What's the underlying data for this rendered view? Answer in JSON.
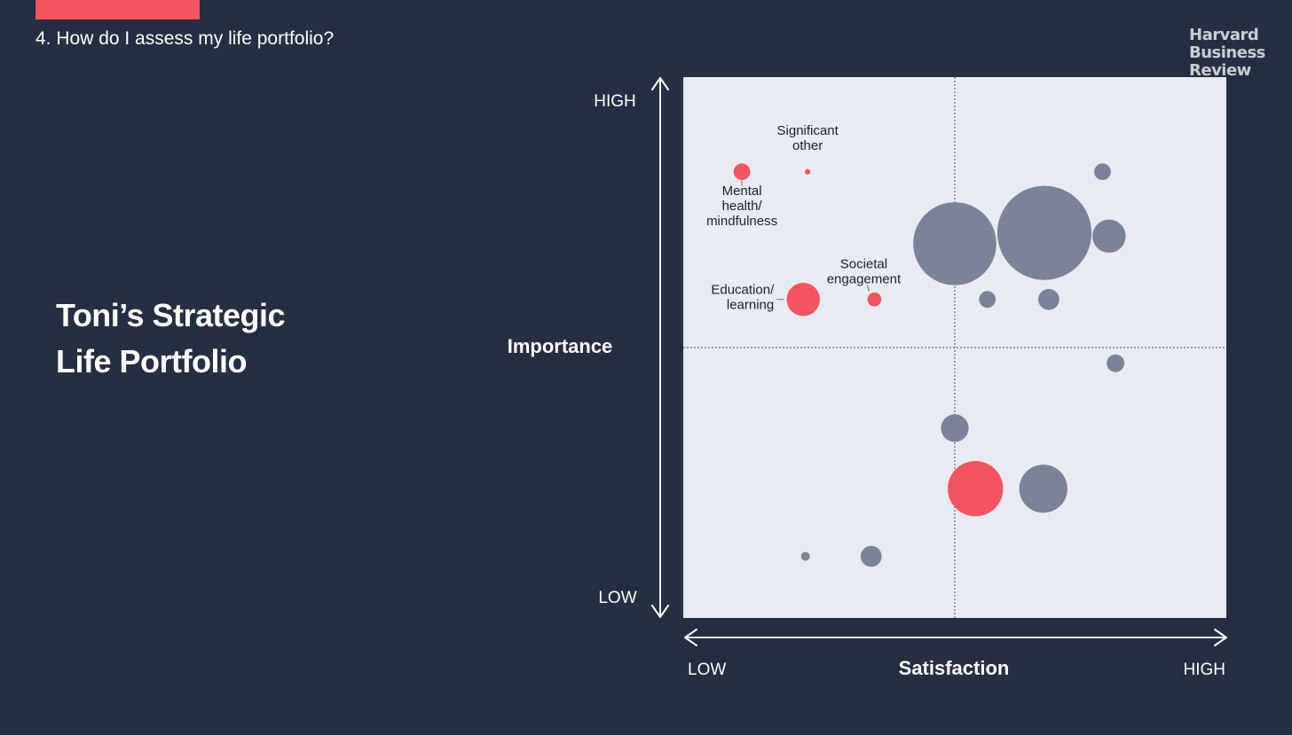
{
  "header": {
    "section_title": "4. How do I assess my life portfolio?",
    "accent_color": "#f4545e"
  },
  "brand": {
    "lines": [
      "Harvard",
      "Business",
      "Review"
    ]
  },
  "portfolio_title": {
    "lines": [
      "Toni’s Strategic",
      "Life Portfolio"
    ]
  },
  "chart_data": {
    "type": "scatter",
    "subtype": "bubble",
    "xlabel": "Satisfaction",
    "ylabel": "Importance",
    "x_ticks": {
      "low": "LOW",
      "high": "HIGH"
    },
    "y_ticks": {
      "low": "LOW",
      "high": "HIGH"
    },
    "xlim": [
      0,
      100
    ],
    "ylim": [
      0,
      100
    ],
    "quadrant_dividers": {
      "x": 50,
      "y": 50
    },
    "plot_background": "#e8ecf2",
    "colors": {
      "highlight": "#f4545e",
      "default": "#7b8299"
    },
    "points": [
      {
        "label": "Mental health/ mindfulness",
        "x": 10.8,
        "y": 82.5,
        "size": 3,
        "highlight": true
      },
      {
        "label": "Significant other",
        "x": 22.9,
        "y": 82.5,
        "size": 1,
        "highlight": true
      },
      {
        "label": "Education/ learning",
        "x": 22.1,
        "y": 58.9,
        "size": 6,
        "highlight": true
      },
      {
        "label": "Societal engagement",
        "x": 35.2,
        "y": 58.9,
        "size": 2.5,
        "highlight": true
      },
      {
        "label": "",
        "x": 53.8,
        "y": 23.9,
        "size": 10,
        "highlight": true
      },
      {
        "label": "",
        "x": 77.2,
        "y": 82.5,
        "size": 3,
        "highlight": false
      },
      {
        "label": "",
        "x": 50.0,
        "y": 69.2,
        "size": 15,
        "highlight": false
      },
      {
        "label": "",
        "x": 66.5,
        "y": 71.2,
        "size": 17,
        "highlight": false
      },
      {
        "label": "",
        "x": 78.4,
        "y": 70.6,
        "size": 6,
        "highlight": false
      },
      {
        "label": "",
        "x": 56.0,
        "y": 58.9,
        "size": 3,
        "highlight": false
      },
      {
        "label": "",
        "x": 67.3,
        "y": 58.9,
        "size": 3.8,
        "highlight": false
      },
      {
        "label": "",
        "x": 79.6,
        "y": 47.1,
        "size": 3.2,
        "highlight": false
      },
      {
        "label": "",
        "x": 50.0,
        "y": 35.1,
        "size": 5,
        "highlight": false
      },
      {
        "label": "",
        "x": 66.3,
        "y": 23.9,
        "size": 8.7,
        "highlight": false
      },
      {
        "label": "",
        "x": 22.5,
        "y": 11.4,
        "size": 1.6,
        "highlight": false
      },
      {
        "label": "",
        "x": 34.6,
        "y": 11.4,
        "size": 3.8,
        "highlight": false
      }
    ]
  }
}
